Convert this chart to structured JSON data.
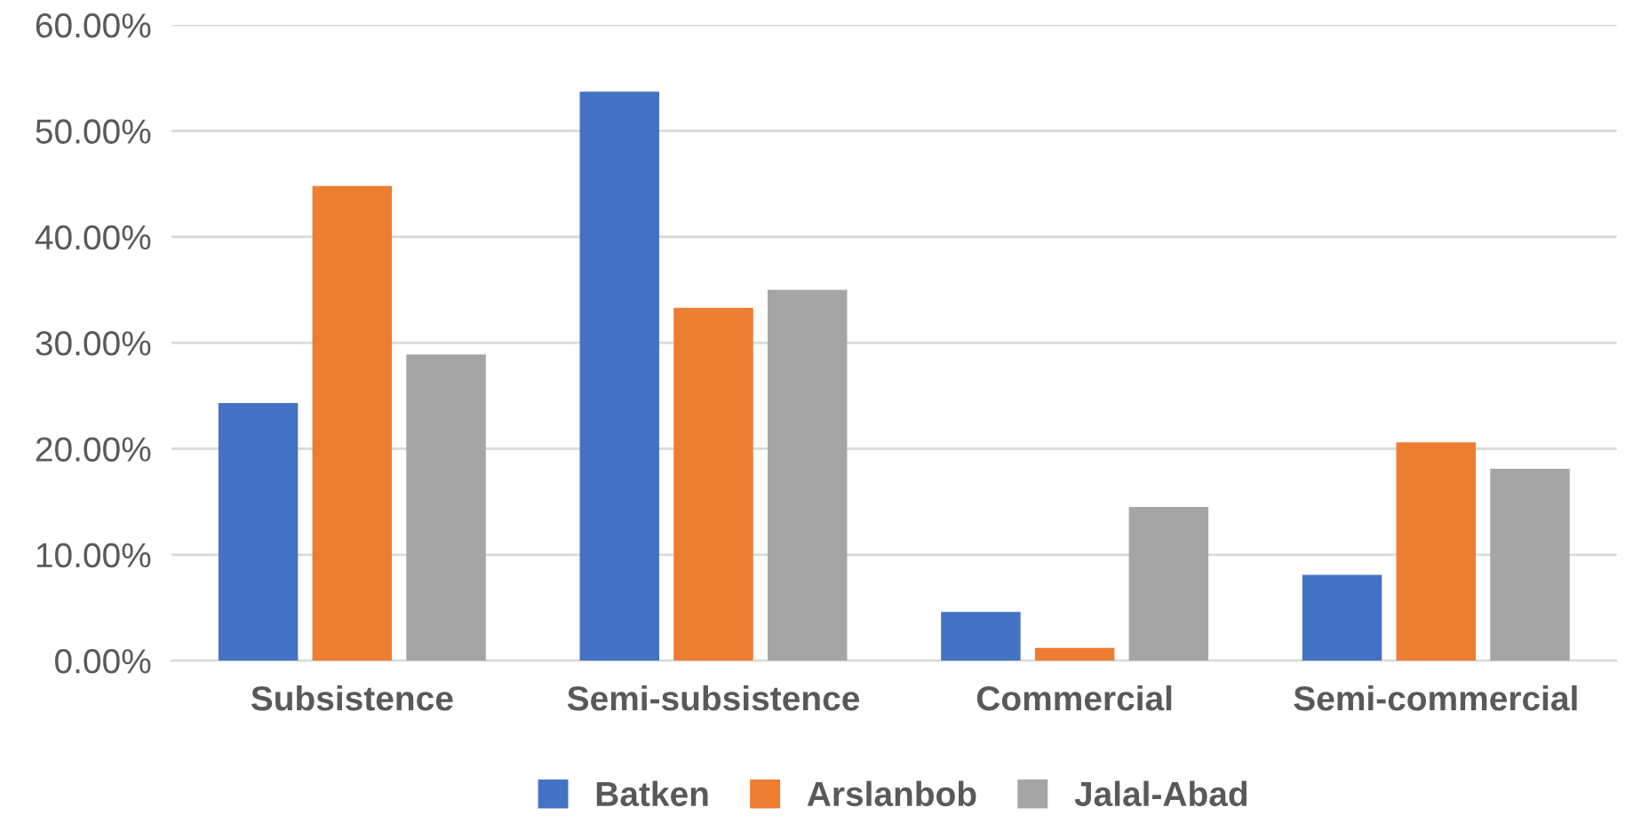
{
  "chart_data": {
    "type": "bar",
    "categories": [
      "Subsistence",
      "Semi-subsistence",
      "Commercial",
      "Semi-commercial"
    ],
    "series": [
      {
        "name": "Batken",
        "color": "#4472c4",
        "values": [
          24.3,
          53.7,
          4.6,
          8.1
        ]
      },
      {
        "name": "Arslanbob",
        "color": "#ed7d31",
        "values": [
          44.8,
          33.3,
          1.2,
          20.6
        ]
      },
      {
        "name": "Jalal-Abad",
        "color": "#a5a5a5",
        "values": [
          28.9,
          35.0,
          14.5,
          18.1
        ]
      }
    ],
    "ylim": [
      0,
      60
    ],
    "yticks": [
      {
        "value": 0,
        "label": "0.00%"
      },
      {
        "value": 10,
        "label": "10.00%"
      },
      {
        "value": 20,
        "label": "20.00%"
      },
      {
        "value": 30,
        "label": "30.00%"
      },
      {
        "value": 40,
        "label": "40.00%"
      },
      {
        "value": 50,
        "label": "50.00%"
      },
      {
        "value": 60,
        "label": "60.00%"
      }
    ],
    "grid": "y",
    "legend": "bottom"
  }
}
